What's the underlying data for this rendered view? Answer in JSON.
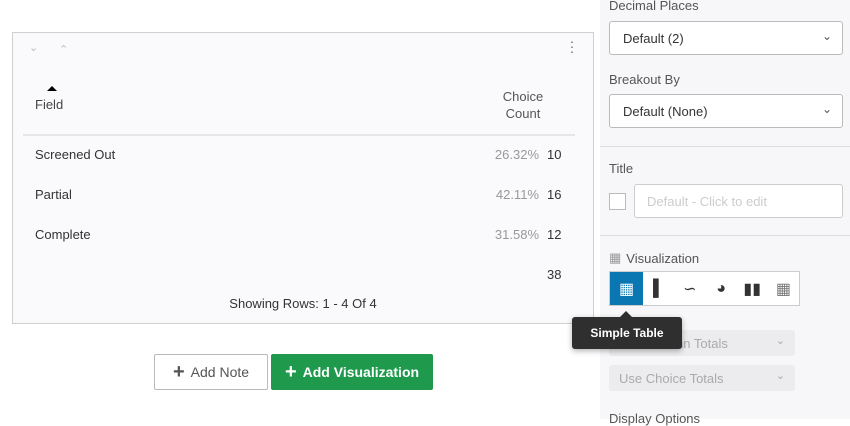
{
  "table": {
    "header_field": "Field",
    "header_count": "Choice Count",
    "rows": [
      {
        "field": "Screened Out",
        "percent": "26.32%",
        "count": "10"
      },
      {
        "field": "Partial",
        "percent": "42.11%",
        "count": "16"
      },
      {
        "field": "Complete",
        "percent": "31.58%",
        "count": "12"
      }
    ],
    "total": "38",
    "showing": "Showing Rows: 1 - 4 Of 4"
  },
  "buttons": {
    "add_note": "Add Note",
    "add_visualization": "Add Visualization"
  },
  "panel": {
    "decimal_label": "Decimal Places",
    "decimal_value": "Default (2)",
    "breakout_label": "Breakout By",
    "breakout_value": "Default (None)",
    "title_label": "Title",
    "title_placeholder": "Default - Click to edit",
    "viz_label": "Visualization",
    "viz_types": [
      "simple-table",
      "bar-chart",
      "line-chart",
      "pie-chart",
      "breakdown-bar",
      "heat-map"
    ],
    "column_totals": "Use Column Totals",
    "choice_totals": "Use Choice Totals",
    "display_options": "Display Options"
  },
  "tooltip": "Simple Table",
  "colors": {
    "accent": "#0a77b3",
    "primary_button": "#1f9a4d"
  }
}
